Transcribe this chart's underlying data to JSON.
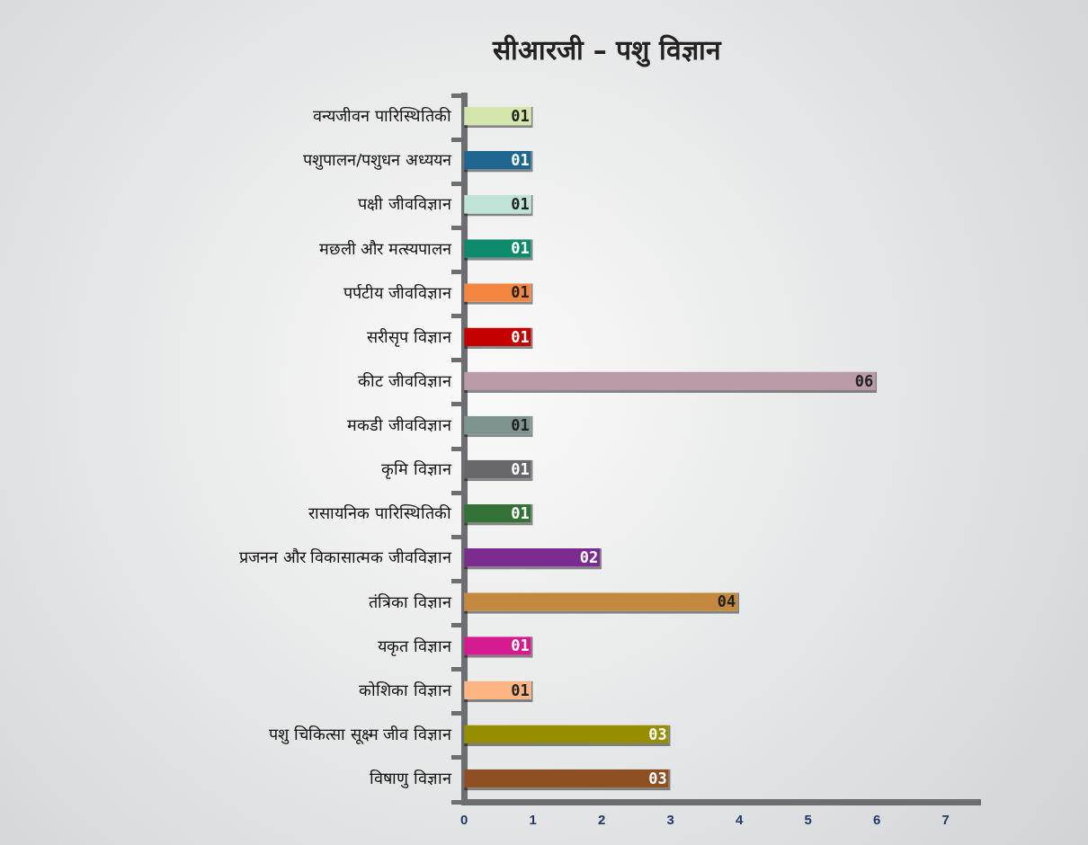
{
  "chart_data": {
    "type": "bar",
    "orientation": "horizontal",
    "title": "सीआरजी – पशु विज्ञान",
    "categories": [
      "वन्यजीवन पारिस्थितिकी",
      "पशुपालन/पशुधन अध्ययन",
      "पक्षी जीवविज्ञान",
      "मछली और मत्स्यपालन",
      "पर्पटीय जीवविज्ञान",
      "सरीसृप विज्ञान",
      "कीट जीवविज्ञान",
      "मकडी जीवविज्ञान",
      "कृमि विज्ञान",
      "रासायनिक पारिस्थितिकी",
      "प्रजनन और विकासात्मक जीवविज्ञान",
      "तंत्रिका विज्ञान",
      "यकृत विज्ञान",
      "कोशिका विज्ञान",
      "पशु चिकित्सा सूक्ष्म जीव विज्ञान",
      "विषाणु विज्ञान"
    ],
    "values": [
      1,
      1,
      1,
      1,
      1,
      1,
      6,
      1,
      1,
      1,
      2,
      4,
      1,
      1,
      3,
      3
    ],
    "value_labels": [
      "01",
      "01",
      "01",
      "01",
      "01",
      "01",
      "06",
      "01",
      "01",
      "01",
      "02",
      "04",
      "01",
      "01",
      "03",
      "03"
    ],
    "colors": [
      "#d4e6ac",
      "#1e6590",
      "#bfe3d6",
      "#0e8a6c",
      "#f38640",
      "#c40000",
      "#ba9aa8",
      "#7f9490",
      "#68686c",
      "#357238",
      "#7a2d8f",
      "#c4893e",
      "#d5198f",
      "#fdb584",
      "#978d00",
      "#8e5022"
    ],
    "xlim": [
      0,
      7.5
    ],
    "xticks": [
      0,
      1,
      2,
      3,
      4,
      5,
      6,
      7
    ],
    "grid": false,
    "legend": false
  }
}
